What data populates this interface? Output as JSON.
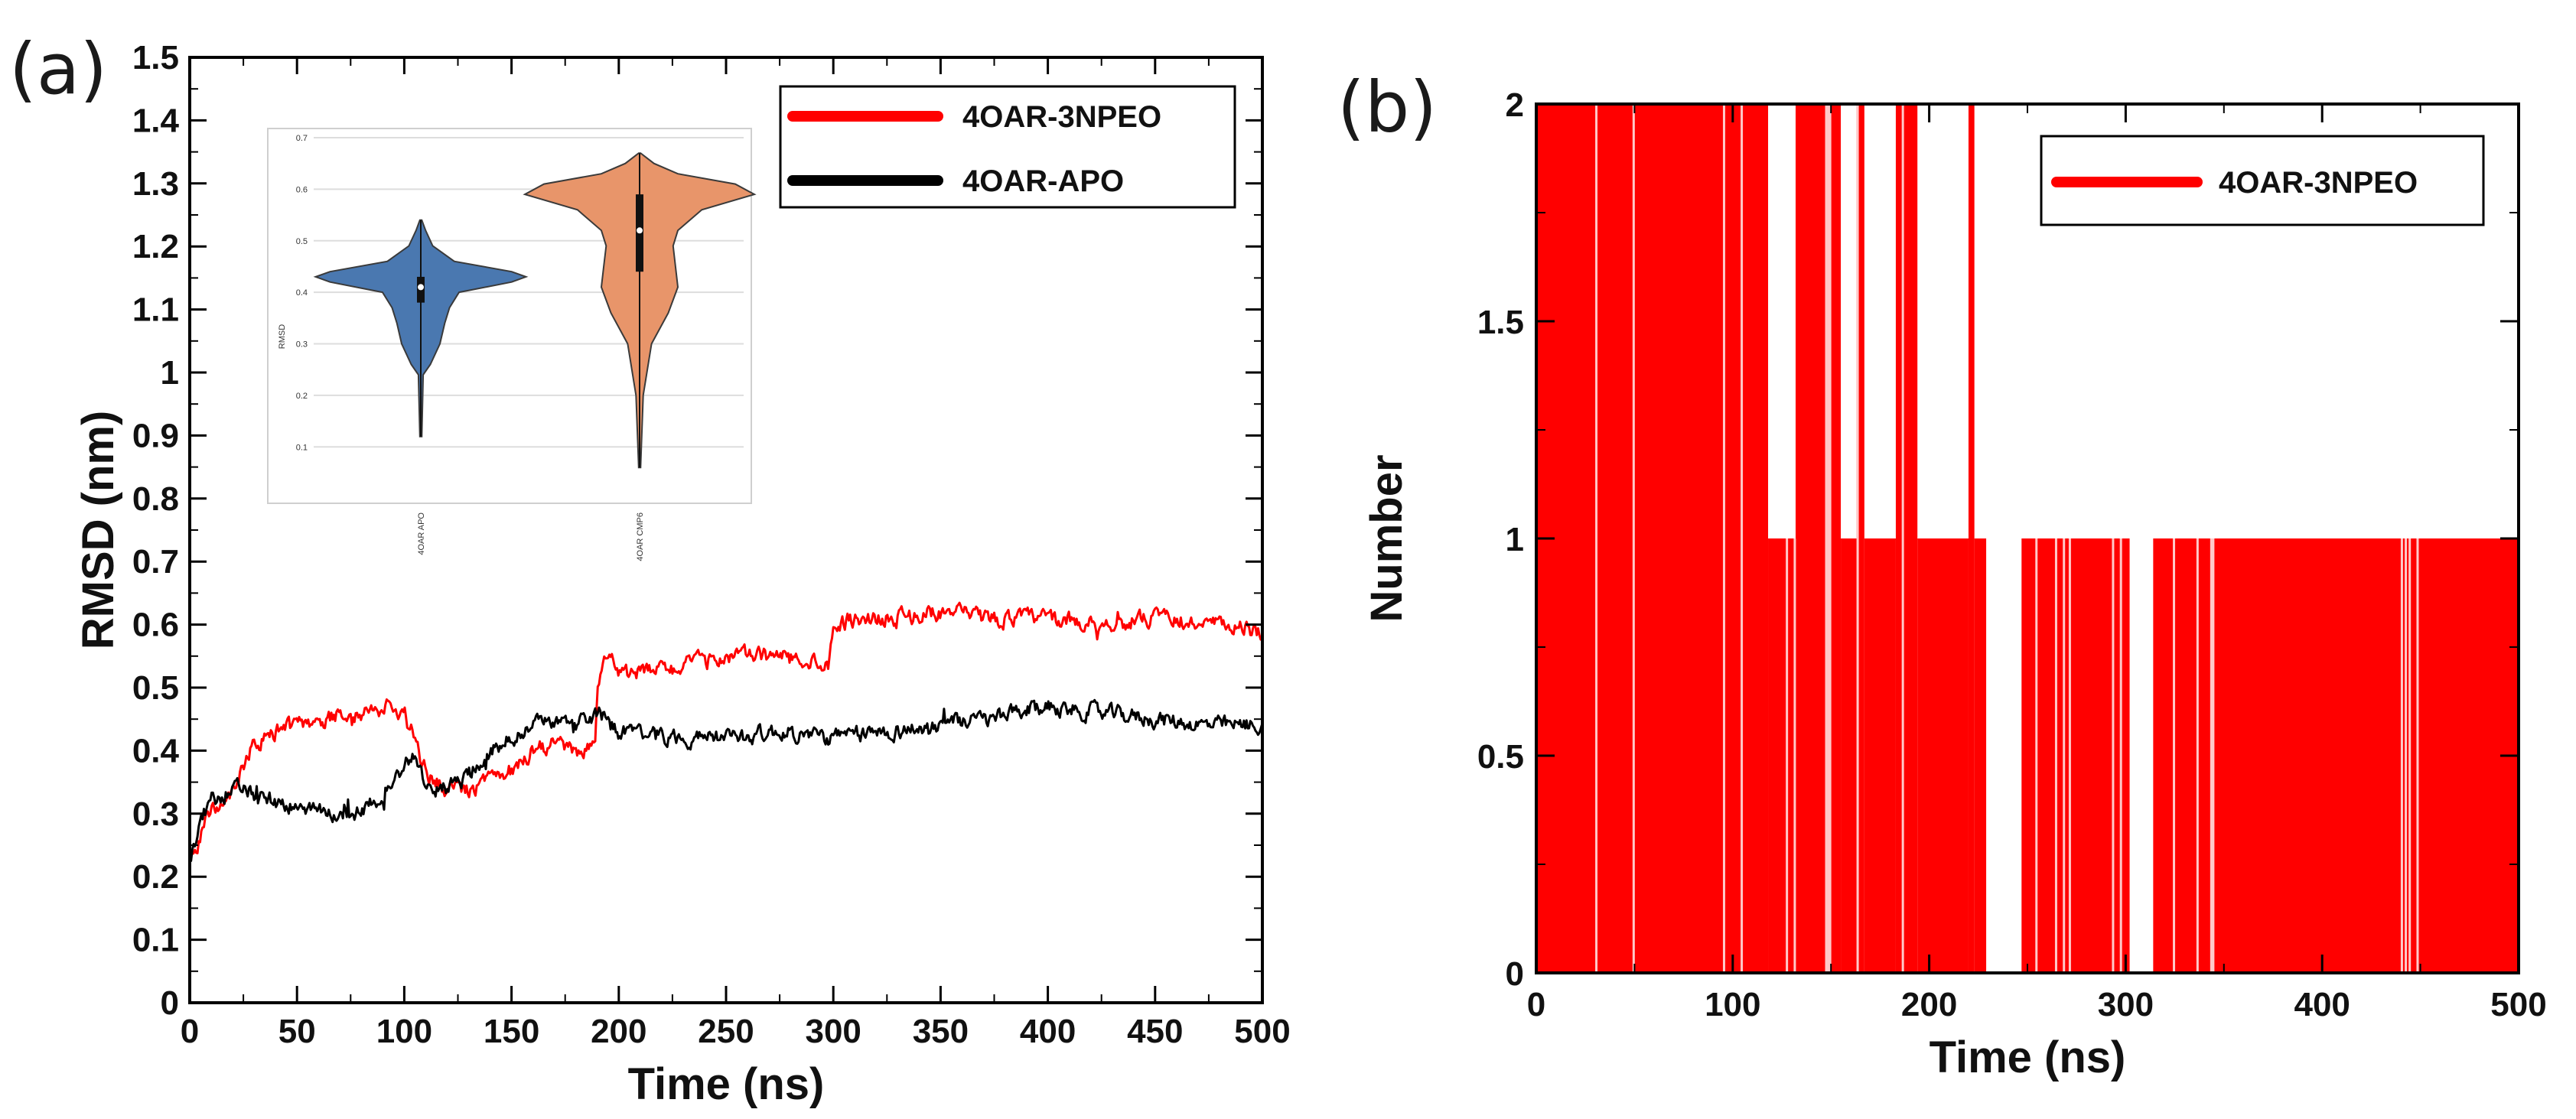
{
  "panels": {
    "a": {
      "label": "(a)"
    },
    "b": {
      "label": "(b)"
    }
  },
  "chart_data": [
    {
      "type": "line",
      "title": "",
      "xlabel": "Time (ns)",
      "ylabel": "RMSD (nm)",
      "xlim": [
        0,
        500
      ],
      "ylim": [
        0,
        1.5
      ],
      "xticks": [
        "0",
        "50",
        "100",
        "150",
        "200",
        "250",
        "300",
        "350",
        "400",
        "450",
        "500"
      ],
      "yticks": [
        "0",
        "0.1",
        "0.2",
        "0.3",
        "0.4",
        "0.5",
        "0.6",
        "0.7",
        "0.8",
        "0.9",
        "1",
        "1.1",
        "1.2",
        "1.3",
        "1.4",
        "1.5"
      ],
      "legend": [
        "4OAR-3NPEO",
        "4OAR-APO"
      ],
      "legend_position": "top-right",
      "series": [
        {
          "name": "4OAR-APO",
          "color": "#000000",
          "noise": 0.022,
          "x": [
            0,
            5,
            10,
            20,
            30,
            40,
            50,
            60,
            70,
            80,
            90,
            100,
            105,
            110,
            120,
            130,
            140,
            150,
            160,
            170,
            180,
            190,
            200,
            225,
            250,
            275,
            300,
            325,
            350,
            375,
            400,
            425,
            450,
            475,
            500
          ],
          "y": [
            0.22,
            0.29,
            0.32,
            0.34,
            0.33,
            0.32,
            0.31,
            0.3,
            0.3,
            0.3,
            0.33,
            0.38,
            0.39,
            0.34,
            0.34,
            0.36,
            0.4,
            0.42,
            0.44,
            0.45,
            0.44,
            0.46,
            0.43,
            0.42,
            0.42,
            0.43,
            0.42,
            0.43,
            0.44,
            0.45,
            0.47,
            0.46,
            0.45,
            0.44,
            0.44
          ]
        },
        {
          "name": "4OAR-3NPEO",
          "color": "#ff0000",
          "noise": 0.022,
          "x": [
            0,
            5,
            10,
            20,
            25,
            30,
            40,
            50,
            60,
            70,
            80,
            90,
            100,
            105,
            110,
            115,
            120,
            130,
            140,
            150,
            160,
            170,
            180,
            189,
            190,
            195,
            200,
            225,
            250,
            275,
            298,
            300,
            310,
            325,
            350,
            375,
            400,
            425,
            450,
            475,
            500
          ],
          "y": [
            0.22,
            0.26,
            0.31,
            0.33,
            0.38,
            0.41,
            0.43,
            0.44,
            0.44,
            0.46,
            0.46,
            0.47,
            0.46,
            0.42,
            0.36,
            0.35,
            0.34,
            0.34,
            0.35,
            0.37,
            0.4,
            0.41,
            0.4,
            0.41,
            0.5,
            0.55,
            0.52,
            0.53,
            0.55,
            0.55,
            0.54,
            0.6,
            0.61,
            0.61,
            0.62,
            0.61,
            0.61,
            0.6,
            0.61,
            0.6,
            0.59
          ]
        }
      ],
      "inset": {
        "type": "violin",
        "ylabel": "RMSD",
        "yticks": [
          "0.1",
          "0.2",
          "0.3",
          "0.4",
          "0.5",
          "0.6",
          "0.7"
        ],
        "ylim": [
          0.05,
          0.7
        ],
        "categories": [
          "4OAR APO",
          "4OAR CMP6"
        ],
        "colors": [
          "#4a78b0",
          "#e8956a"
        ],
        "distributions": [
          {
            "min": 0.12,
            "q1": 0.38,
            "median": 0.41,
            "q3": 0.43,
            "max": 0.54,
            "profile": [
              [
                0.12,
                0.004
              ],
              [
                0.24,
                0.01
              ],
              [
                0.26,
                0.04
              ],
              [
                0.3,
                0.08
              ],
              [
                0.34,
                0.1
              ],
              [
                0.37,
                0.12
              ],
              [
                0.4,
                0.16
              ],
              [
                0.42,
                0.38
              ],
              [
                0.43,
                0.44
              ],
              [
                0.44,
                0.38
              ],
              [
                0.46,
                0.14
              ],
              [
                0.49,
                0.05
              ],
              [
                0.52,
                0.02
              ],
              [
                0.54,
                0.004
              ]
            ]
          },
          {
            "min": 0.06,
            "q1": 0.44,
            "median": 0.52,
            "q3": 0.59,
            "max": 0.67,
            "profile": [
              [
                0.06,
                0.004
              ],
              [
                0.2,
                0.015
              ],
              [
                0.3,
                0.05
              ],
              [
                0.36,
                0.12
              ],
              [
                0.41,
                0.16
              ],
              [
                0.45,
                0.15
              ],
              [
                0.49,
                0.14
              ],
              [
                0.52,
                0.16
              ],
              [
                0.56,
                0.26
              ],
              [
                0.59,
                0.48
              ],
              [
                0.61,
                0.4
              ],
              [
                0.63,
                0.16
              ],
              [
                0.65,
                0.06
              ],
              [
                0.67,
                0.004
              ]
            ]
          }
        ]
      }
    },
    {
      "type": "bar",
      "subtype": "step",
      "title": "",
      "xlabel": "Time (ns)",
      "ylabel": "Number",
      "xlim": [
        0,
        500
      ],
      "ylim": [
        0,
        2
      ],
      "xticks": [
        "0",
        "100",
        "200",
        "300",
        "400",
        "500"
      ],
      "yticks": [
        "0",
        "0.5",
        "1",
        "1.5",
        "2"
      ],
      "legend": [
        "4OAR-3NPEO"
      ],
      "legend_position": "top-right",
      "series": [
        {
          "name": "4OAR-3NPEO",
          "color": "#ff0000",
          "segments": [
            {
              "x0": 0,
              "x1": 118,
              "value": 2
            },
            {
              "x0": 118,
              "x1": 132,
              "value": 1
            },
            {
              "x0": 132,
              "x1": 155,
              "value": 2
            },
            {
              "x0": 155,
              "x1": 163,
              "value": 1
            },
            {
              "x0": 163,
              "x1": 167,
              "value": 2
            },
            {
              "x0": 167,
              "x1": 183,
              "value": 1
            },
            {
              "x0": 183,
              "x1": 194,
              "value": 2
            },
            {
              "x0": 194,
              "x1": 220,
              "value": 1
            },
            {
              "x0": 220,
              "x1": 223,
              "value": 2
            },
            {
              "x0": 223,
              "x1": 229,
              "value": 1
            },
            {
              "x0": 229,
              "x1": 247,
              "value": 0
            },
            {
              "x0": 247,
              "x1": 302,
              "value": 1
            },
            {
              "x0": 302,
              "x1": 314,
              "value": 0
            },
            {
              "x0": 314,
              "x1": 500,
              "value": 1
            }
          ],
          "gaps": [
            30,
            49,
            95,
            104,
            127,
            131,
            147,
            148,
            149,
            163,
            186,
            254,
            264,
            268,
            271,
            293,
            297,
            324,
            336,
            343,
            344,
            440,
            442,
            444,
            448
          ]
        }
      ]
    }
  ]
}
